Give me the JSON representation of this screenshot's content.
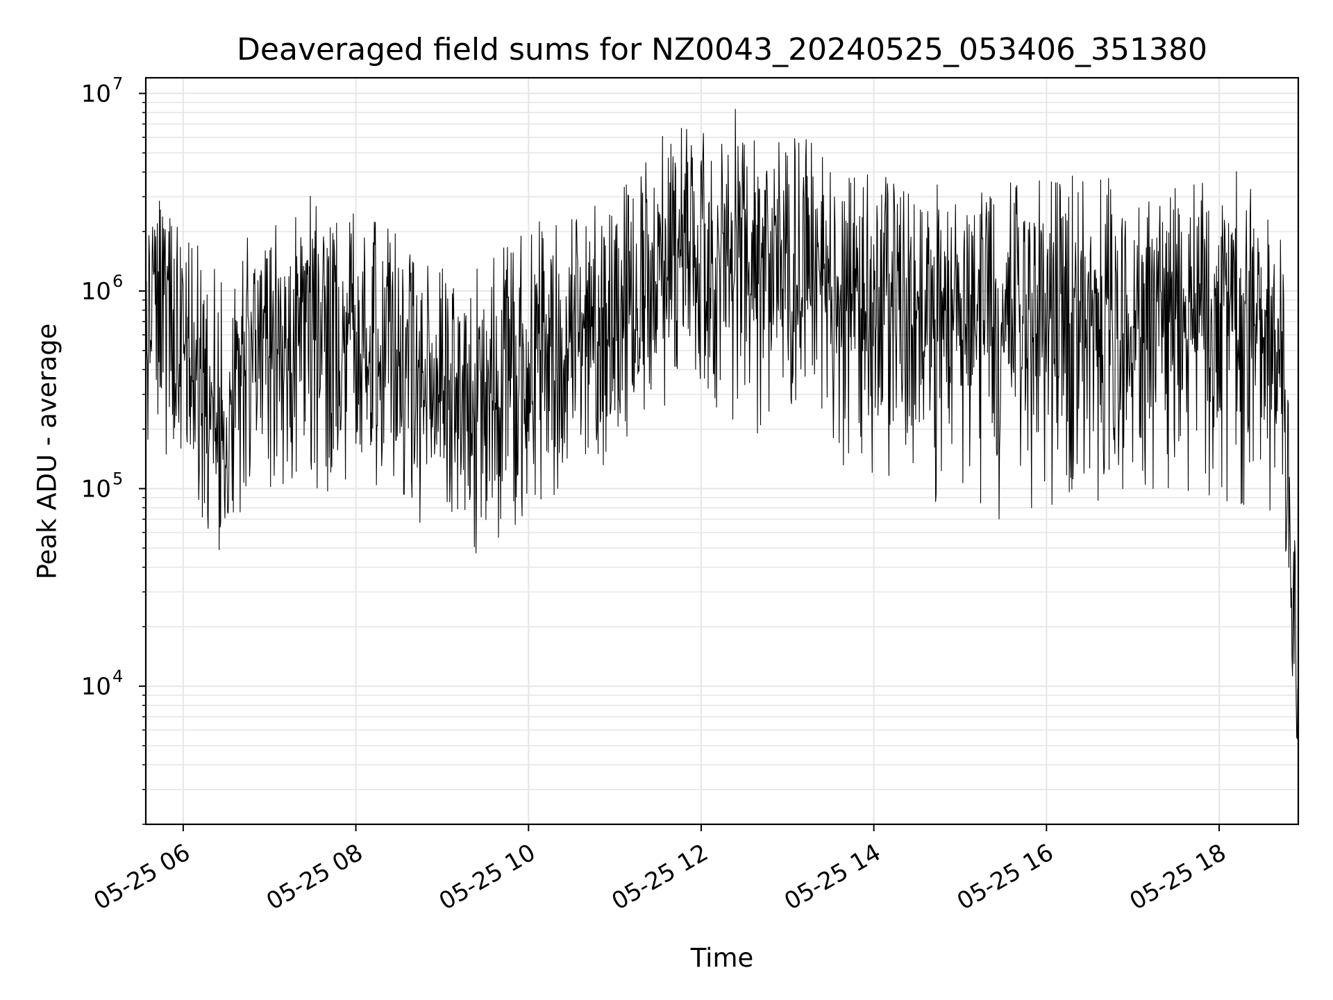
{
  "chart_data": {
    "type": "line",
    "title": "Deaveraged field sums for NZ0043_20240525_053406_351380",
    "xlabel": "Time",
    "ylabel": "Peak ADU - average",
    "y_scale": "log",
    "ylim": [
      2000,
      12000000
    ],
    "xlim": [
      "2024-05-25 05:34",
      "2024-05-25 18:55"
    ],
    "x_ticks": [
      "05-25 06",
      "05-25 08",
      "05-25 10",
      "05-25 12",
      "05-25 14",
      "05-25 16",
      "05-25 18"
    ],
    "y_ticks": [
      {
        "base": "10",
        "exp": "4",
        "value": 10000
      },
      {
        "base": "10",
        "exp": "5",
        "value": 100000
      },
      {
        "base": "10",
        "exp": "6",
        "value": 1000000
      },
      {
        "base": "10",
        "exp": "7",
        "value": 10000000
      }
    ],
    "grid": true,
    "line_color": "#000000",
    "grid_color": "#e6e6e6",
    "series": [
      {
        "x": [
          "2024-05-25 05:34",
          "2024-05-25 05:45",
          "2024-05-25 06:00",
          "2024-05-25 06:20",
          "2024-05-25 06:30",
          "2024-05-25 06:45",
          "2024-05-25 07:00",
          "2024-05-25 07:30",
          "2024-05-25 08:00",
          "2024-05-25 08:30",
          "2024-05-25 09:00",
          "2024-05-25 09:15",
          "2024-05-25 09:30",
          "2024-05-25 09:50",
          "2024-05-25 10:00",
          "2024-05-25 10:30",
          "2024-05-25 11:00",
          "2024-05-25 11:30",
          "2024-05-25 12:00",
          "2024-05-25 12:30",
          "2024-05-25 13:00",
          "2024-05-25 13:30",
          "2024-05-25 14:00",
          "2024-05-25 14:30",
          "2024-05-25 15:00",
          "2024-05-25 15:30",
          "2024-05-25 16:00",
          "2024-05-25 16:30",
          "2024-05-25 17:00",
          "2024-05-25 17:30",
          "2024-05-25 18:00",
          "2024-05-25 18:30",
          "2024-05-25 18:45",
          "2024-05-25 18:50",
          "2024-05-25 18:55"
        ],
        "y_typical": [
          700000,
          900000,
          600000,
          250000,
          150000,
          450000,
          600000,
          650000,
          450000,
          400000,
          300000,
          250000,
          300000,
          350000,
          450000,
          550000,
          750000,
          1400000,
          1700000,
          1500000,
          1200000,
          900000,
          800000,
          800000,
          750000,
          700000,
          750000,
          750000,
          750000,
          800000,
          800000,
          700000,
          500000,
          25000,
          15000
        ],
        "y_high": [
          1200000,
          2500000,
          2000000,
          1500000,
          1500000,
          2000000,
          1800000,
          2000000,
          2500000,
          2000000,
          1300000,
          1500000,
          1500000,
          2000000,
          2000000,
          2500000,
          3000000,
          6500000,
          7000000,
          6000000,
          8000000,
          5000000,
          4000000,
          3500000,
          3500000,
          3500000,
          4000000,
          4000000,
          3500000,
          3000000,
          3000000,
          3500000,
          2500000,
          60000,
          60000
        ],
        "y_low": [
          400000,
          120000,
          200000,
          60000,
          37000,
          100000,
          100000,
          100000,
          90000,
          90000,
          70000,
          55000,
          40000,
          60000,
          80000,
          100000,
          150000,
          250000,
          250000,
          200000,
          150000,
          120000,
          110000,
          100000,
          55000,
          70000,
          70000,
          80000,
          90000,
          90000,
          80000,
          80000,
          50000,
          11000,
          3000
        ]
      }
    ]
  }
}
